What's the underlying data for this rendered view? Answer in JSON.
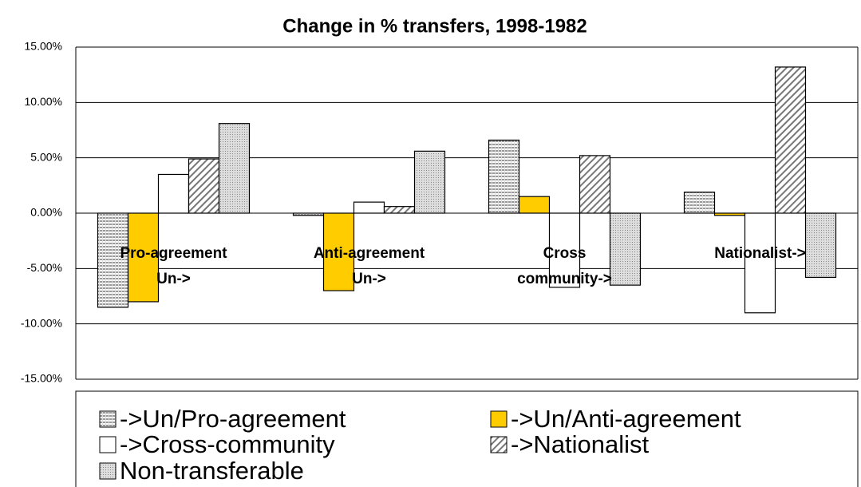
{
  "chart_data": {
    "type": "bar",
    "title": "Change in % transfers, 1998-1982",
    "categories": [
      "Pro-agreement Un->",
      "Anti-agreement Un->",
      "Cross community->",
      "Nationalist->"
    ],
    "series": [
      {
        "name": "->Un/Pro-agreement",
        "color": "#c8c8c8",
        "values": [
          -8.5,
          -0.2,
          6.6,
          1.9
        ]
      },
      {
        "name": "->Un/Anti-agreement",
        "color": "#ffcc00",
        "values": [
          -8.0,
          -7.0,
          1.5,
          -0.2
        ]
      },
      {
        "name": "->Cross-community",
        "color": "#ffffff",
        "values": [
          3.5,
          1.0,
          -6.7,
          -9.0
        ]
      },
      {
        "name": "->Nationalist",
        "color": "#b0b0b0",
        "values": [
          4.9,
          0.6,
          5.2,
          13.2
        ]
      },
      {
        "name": "Non-transferable",
        "color": "#c0c0c0",
        "values": [
          8.1,
          5.6,
          -6.5,
          -5.8
        ]
      }
    ],
    "ylim": [
      -15,
      15
    ],
    "yticks": [
      {
        "value": -15,
        "label": "-15.00%"
      },
      {
        "value": -10,
        "label": "-10.00%"
      },
      {
        "value": -5,
        "label": "-5.00%"
      },
      {
        "value": 0,
        "label": "0.00%"
      },
      {
        "value": 5,
        "label": "5.00%"
      },
      {
        "value": 10,
        "label": "10.00%"
      },
      {
        "value": 15,
        "label": "15.00%"
      }
    ],
    "grid": true
  }
}
